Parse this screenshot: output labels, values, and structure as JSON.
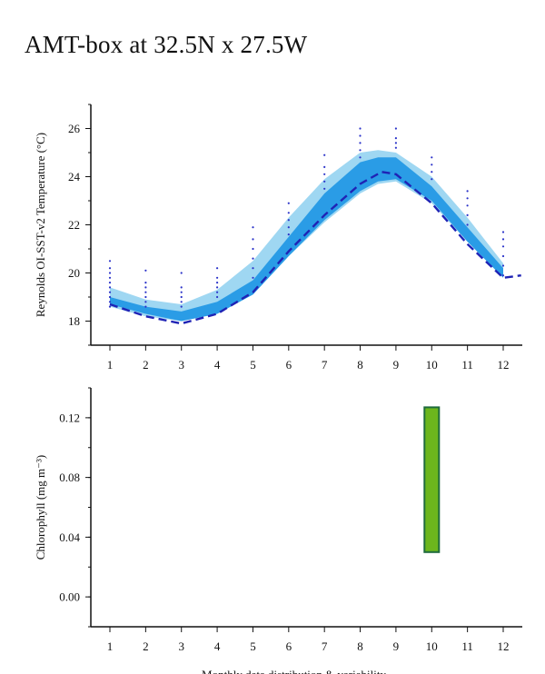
{
  "page": {
    "title": "AMT-box at 32.5N x 27.5W"
  },
  "colors": {
    "band_outer": "#9fd7f2",
    "band_inner": "#2a9ce6",
    "median_line": "#1f23b5",
    "scatter": "#2b33c9",
    "box_fill": "#6cb61d",
    "box_stroke": "#1e6b3c",
    "axis": "#111111"
  },
  "chart_data": [
    {
      "type": "area",
      "title": "",
      "ylabel": "Reynolds OI-SST-v2 Temperature (°C)",
      "xlabel": "",
      "x_ticks": [
        1,
        2,
        3,
        4,
        5,
        6,
        7,
        8,
        9,
        10,
        11,
        12
      ],
      "y_ticks": [
        18,
        20,
        22,
        24,
        26
      ],
      "y_tick_labels": [
        "18",
        "20",
        "22",
        "24",
        "26"
      ],
      "xlim": [
        0.5,
        12.5
      ],
      "ylim": [
        17.0,
        27.0
      ],
      "grid": false,
      "series": [
        {
          "role": "outer-range",
          "x": [
            1,
            2,
            3,
            4,
            5,
            6,
            7,
            8,
            8.5,
            9,
            10,
            11,
            12
          ],
          "lower": [
            18.6,
            18.2,
            18.0,
            18.3,
            19.1,
            20.7,
            22.1,
            23.3,
            23.7,
            23.8,
            22.9,
            21.3,
            19.8
          ],
          "upper": [
            19.4,
            18.9,
            18.7,
            19.3,
            20.5,
            22.3,
            23.9,
            25.0,
            25.1,
            25.0,
            24.0,
            22.3,
            20.4
          ]
        },
        {
          "role": "inner-range",
          "x": [
            1,
            2,
            3,
            4,
            5,
            6,
            7,
            8,
            8.5,
            9,
            10,
            11,
            12
          ],
          "lower": [
            18.7,
            18.3,
            18.0,
            18.3,
            19.1,
            20.7,
            22.2,
            23.4,
            23.8,
            23.9,
            23.0,
            21.3,
            19.8
          ],
          "upper": [
            19.0,
            18.6,
            18.4,
            18.8,
            19.7,
            21.5,
            23.3,
            24.6,
            24.8,
            24.8,
            23.6,
            21.9,
            20.2
          ]
        },
        {
          "role": "median",
          "x": [
            1,
            2,
            3,
            4,
            5,
            6,
            7,
            8,
            8.6,
            9,
            10,
            11,
            12,
            12.5
          ],
          "values": [
            18.7,
            18.2,
            17.9,
            18.3,
            19.2,
            20.9,
            22.4,
            23.7,
            24.2,
            24.1,
            22.9,
            21.2,
            19.8,
            19.9
          ]
        }
      ],
      "scatter": [
        {
          "x": 1,
          "values": [
            18.6,
            18.8,
            19.0,
            19.2,
            19.4,
            19.6,
            19.8,
            20.0,
            20.2,
            20.5
          ]
        },
        {
          "x": 2,
          "values": [
            18.6,
            18.8,
            19.0,
            19.2,
            19.4,
            19.6,
            20.1
          ]
        },
        {
          "x": 3,
          "values": [
            18.6,
            18.8,
            19.0,
            19.2,
            19.4,
            20.0
          ]
        },
        {
          "x": 4,
          "values": [
            19.0,
            19.2,
            19.4,
            19.6,
            19.8,
            20.2
          ]
        },
        {
          "x": 5,
          "values": [
            19.8,
            20.2,
            20.6,
            21.0,
            21.4,
            21.9
          ]
        },
        {
          "x": 6,
          "values": [
            21.6,
            21.9,
            22.2,
            22.5,
            22.9
          ]
        },
        {
          "x": 7,
          "values": [
            23.5,
            23.8,
            24.1,
            24.4,
            24.9
          ]
        },
        {
          "x": 8,
          "values": [
            24.8,
            25.1,
            25.4,
            25.7,
            26.0
          ]
        },
        {
          "x": 9,
          "values": [
            25.2,
            25.4,
            25.6,
            26.0
          ]
        },
        {
          "x": 10,
          "values": [
            23.9,
            24.2,
            24.5,
            24.8
          ]
        },
        {
          "x": 11,
          "values": [
            22.0,
            22.4,
            22.8,
            23.1,
            23.4
          ]
        },
        {
          "x": 12,
          "values": [
            19.9,
            20.3,
            20.7,
            21.1,
            21.4,
            21.7
          ]
        }
      ]
    },
    {
      "type": "bar",
      "title": "",
      "ylabel": "Chlorophyll (mg m⁻³)",
      "xlabel": "Monthly data distribution & variability",
      "x_ticks": [
        1,
        2,
        3,
        4,
        5,
        6,
        7,
        8,
        9,
        10,
        11,
        12
      ],
      "y_ticks": [
        0.0,
        0.04,
        0.08,
        0.12
      ],
      "y_tick_labels": [
        "0.00",
        "0.04",
        "0.08",
        "0.12"
      ],
      "xlim": [
        0.5,
        12.5
      ],
      "ylim": [
        -0.02,
        0.14
      ],
      "grid": false,
      "boxes": [
        {
          "x": 10,
          "low": 0.03,
          "high": 0.127
        }
      ]
    }
  ]
}
